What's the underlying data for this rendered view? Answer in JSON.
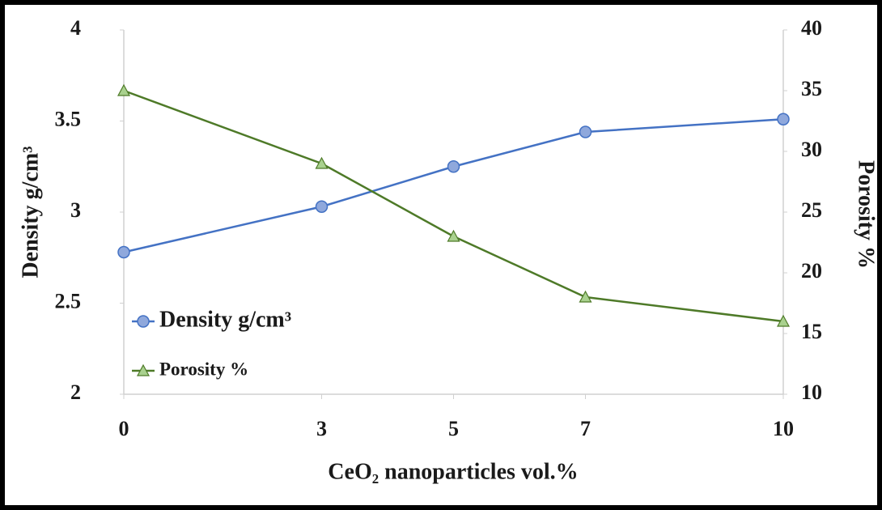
{
  "chart_data": {
    "type": "line",
    "x_label": "CeO₂ nanoparticles vol.%",
    "y_label": "Density g/cm³",
    "y2_label": "Porosity %",
    "x": [
      0,
      3,
      5,
      7,
      10
    ],
    "xlim": [
      0,
      10
    ],
    "xticks": [
      0,
      3,
      5,
      7,
      10
    ],
    "ylim": [
      2,
      4
    ],
    "yticks": [
      2,
      2.5,
      3,
      3.5,
      4
    ],
    "y2lim": [
      10,
      40
    ],
    "y2ticks": [
      10,
      15,
      20,
      25,
      30,
      35,
      40
    ],
    "grid": false,
    "legend": "lower left",
    "series": [
      {
        "name": "Density g/cm³",
        "color": "#4472c4",
        "marker_color": "#8fa8dc",
        "marker": "circle",
        "axis": "y",
        "values": [
          2.78,
          3.03,
          3.25,
          3.44,
          3.51
        ]
      },
      {
        "name": "Porosity %",
        "color": "#4e7a28",
        "marker_color": "#a9d18e",
        "marker": "triangle",
        "axis": "y2",
        "values": [
          35,
          29,
          23,
          18,
          16
        ]
      }
    ]
  }
}
